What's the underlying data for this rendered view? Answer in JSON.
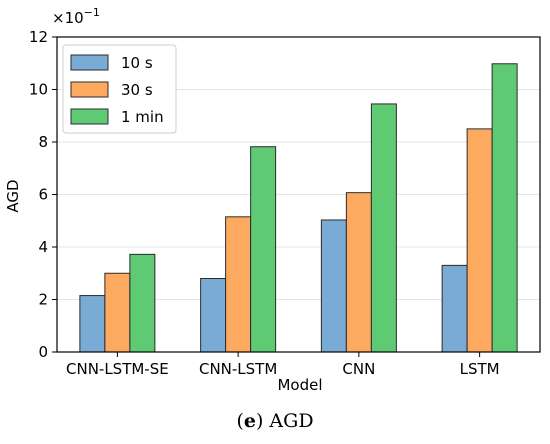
{
  "chart_data": {
    "type": "bar",
    "categories": [
      "CNN-LSTM-SE",
      "CNN-LSTM",
      "CNN",
      "LSTM"
    ],
    "series": [
      {
        "name": "10 s",
        "values": [
          2.15,
          2.8,
          5.03,
          3.3
        ],
        "color": "#7aabd4"
      },
      {
        "name": "30 s",
        "values": [
          3.0,
          5.15,
          6.07,
          8.5
        ],
        "color": "#fdaa60"
      },
      {
        "name": "1 min",
        "values": [
          3.72,
          7.82,
          9.45,
          10.98
        ],
        "color": "#5ecb74"
      }
    ],
    "xlabel": "Model",
    "ylabel": "AGD",
    "ylim": [
      0,
      12
    ],
    "yticks": [
      "0",
      "2",
      "4",
      "6",
      "8",
      "10",
      "12"
    ],
    "scale_label": "×10",
    "scale_exponent": "−1",
    "legend_position": "top-left",
    "grid": "horizontal"
  },
  "caption": {
    "letter": "e",
    "text": " AGD"
  }
}
